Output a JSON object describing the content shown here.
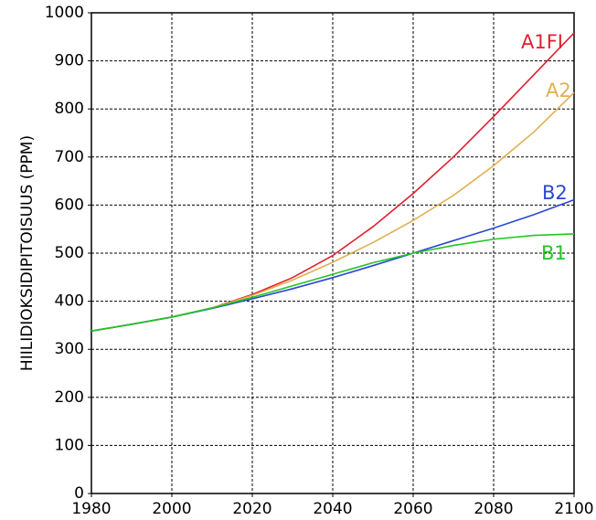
{
  "chart_data": {
    "type": "line",
    "ylabel": "HIILIDIOKSIDIPITOISUUS (PPM)",
    "x": [
      1980,
      1990,
      2000,
      2010,
      2020,
      2030,
      2040,
      2050,
      2060,
      2070,
      2080,
      2090,
      2100
    ],
    "series": [
      {
        "name": "A1FI",
        "color": "#e0202e",
        "values": [
          338,
          352,
          367,
          386,
          414,
          449,
          495,
          555,
          624,
          700,
          784,
          871,
          958
        ]
      },
      {
        "name": "A2",
        "color": "#e0b050",
        "values": [
          338,
          352,
          367,
          386,
          412,
          444,
          481,
          522,
          568,
          620,
          682,
          752,
          834
        ]
      },
      {
        "name": "B2",
        "color": "#2a48d0",
        "values": [
          338,
          352,
          367,
          385,
          405,
          426,
          449,
          474,
          500,
          526,
          552,
          580,
          611
        ]
      },
      {
        "name": "B1",
        "color": "#22c622",
        "values": [
          338,
          352,
          367,
          386,
          408,
          432,
          456,
          480,
          500,
          516,
          529,
          537,
          540
        ]
      }
    ],
    "xlim": [
      1980,
      2100
    ],
    "xticks": [
      1980,
      2000,
      2020,
      2040,
      2060,
      2080,
      2100
    ],
    "ylim": [
      0,
      1000
    ],
    "yticks": [
      0,
      100,
      200,
      300,
      400,
      500,
      600,
      700,
      800,
      900,
      1000
    ],
    "grid": true
  }
}
